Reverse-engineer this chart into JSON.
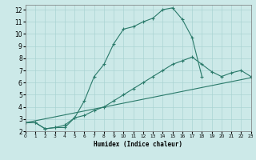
{
  "xlabel": "Humidex (Indice chaleur)",
  "bg_color": "#cce9e8",
  "grid_color": "#aad4d3",
  "line_color": "#2a7a6a",
  "xlim": [
    0,
    23
  ],
  "ylim": [
    2,
    12.4
  ],
  "xticks": [
    0,
    1,
    2,
    3,
    4,
    5,
    6,
    7,
    8,
    9,
    10,
    11,
    12,
    13,
    14,
    15,
    16,
    17,
    18,
    19,
    20,
    21,
    22,
    23
  ],
  "yticks": [
    2,
    3,
    4,
    5,
    6,
    7,
    8,
    9,
    10,
    11,
    12
  ],
  "curve1_x": [
    0,
    1,
    2,
    3,
    4,
    5,
    6,
    7,
    8,
    9,
    10,
    11,
    12,
    13,
    14,
    15,
    16,
    17,
    18
  ],
  "curve1_y": [
    2.7,
    2.7,
    2.2,
    2.3,
    2.3,
    3.1,
    4.5,
    6.5,
    7.5,
    9.2,
    10.4,
    10.6,
    11.0,
    11.3,
    12.0,
    12.15,
    11.2,
    9.7,
    6.5
  ],
  "curve2_x": [
    0,
    1,
    2,
    3,
    4,
    5,
    6,
    7,
    8,
    9,
    10,
    11,
    12,
    13,
    14,
    15,
    16,
    17,
    18,
    19,
    20,
    21,
    22,
    23
  ],
  "curve2_y": [
    2.7,
    2.7,
    2.2,
    2.3,
    2.5,
    3.1,
    3.3,
    3.7,
    4.0,
    4.5,
    5.0,
    5.5,
    6.0,
    6.5,
    7.0,
    7.5,
    7.8,
    8.1,
    7.5,
    6.9,
    6.5,
    6.8,
    7.0,
    6.5
  ],
  "curve3_x": [
    0,
    23
  ],
  "curve3_y": [
    2.7,
    6.4
  ]
}
